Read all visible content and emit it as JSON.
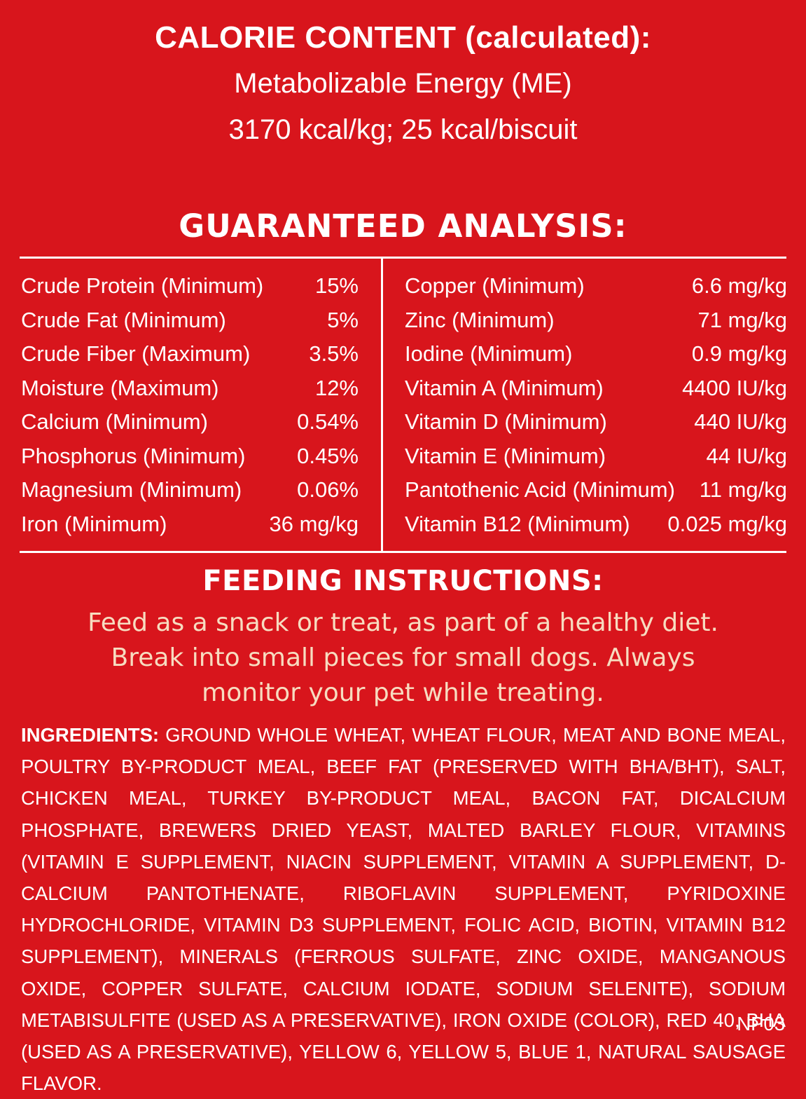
{
  "calorie": {
    "heading": "CALORIE CONTENT (calculated):",
    "line1": "Metabolizable Energy (ME)",
    "line2": "3170 kcal/kg; 25 kcal/biscuit"
  },
  "analysis": {
    "title": "GUARANTEED ANALYSIS:",
    "left": [
      {
        "name": "Crude Protein (Minimum)",
        "value": "15%"
      },
      {
        "name": "Crude Fat (Minimum)",
        "value": "5%"
      },
      {
        "name": "Crude Fiber (Maximum)",
        "value": "3.5%"
      },
      {
        "name": "Moisture (Maximum)",
        "value": "12%"
      },
      {
        "name": "Calcium (Minimum)",
        "value": "0.54%"
      },
      {
        "name": "Phosphorus (Minimum)",
        "value": "0.45%"
      },
      {
        "name": "Magnesium (Minimum)",
        "value": "0.06%"
      },
      {
        "name": "Iron (Minimum)",
        "value": "36 mg/kg"
      }
    ],
    "right": [
      {
        "name": "Copper (Minimum)",
        "value": "6.6 mg/kg"
      },
      {
        "name": "Zinc (Minimum)",
        "value": "71 mg/kg"
      },
      {
        "name": "Iodine (Minimum)",
        "value": "0.9 mg/kg"
      },
      {
        "name": "Vitamin A (Minimum)",
        "value": "4400 IU/kg"
      },
      {
        "name": "Vitamin D (Minimum)",
        "value": "440 IU/kg"
      },
      {
        "name": "Vitamin E (Minimum)",
        "value": "44 IU/kg"
      },
      {
        "name": "Pantothenic Acid (Minimum)",
        "value": "11 mg/kg"
      },
      {
        "name": "Vitamin B12 (Minimum)",
        "value": "0.025 mg/kg"
      }
    ]
  },
  "feeding": {
    "title": "FEEDING INSTRUCTIONS:",
    "line1": "Feed as a snack or treat, as part of a healthy diet.",
    "line2": "Break into small pieces for small dogs. Always",
    "line3": "monitor your pet while treating."
  },
  "ingredients": {
    "label": "INGREDIENTS:",
    "text": "GROUND WHOLE WHEAT, WHEAT FLOUR, MEAT AND BONE MEAL, POULTRY BY-PRODUCT MEAL, BEEF FAT (PRESERVED WITH BHA/BHT), SALT, CHICKEN MEAL, TURKEY BY-PRODUCT MEAL, BACON FAT, DICALCIUM PHOSPHATE, BREWERS DRIED YEAST, MALTED BARLEY FLOUR, VITAMINS (VITAMIN E SUPPLEMENT, NIACIN SUPPLEMENT, VITAMIN A SUPPLEMENT, D-CALCIUM PANTOTHENATE, RIBOFLAVIN SUPPLEMENT, PYRIDOXINE HYDROCHLORIDE, VITAMIN D3 SUPPLEMENT, FOLIC ACID, BIOTIN, VITAMIN B12 SUPPLEMENT), MINERALS (FERROUS SULFATE, ZINC OXIDE, MANGANOUS OXIDE, COPPER SULFATE, CALCIUM IODATE, SODIUM SELENITE), SODIUM METABISULFITE (USED AS A PRESERVATIVE), IRON OXIDE (COLOR), RED 40, BHA (USED AS A PRESERVATIVE), YELLOW 6, YELLOW 5, BLUE 1, NATURAL SAUSAGE FLAVOR.",
    "code": "NP03"
  },
  "colors": {
    "background": "#d8151c",
    "text": "#ffffff",
    "feeding_text": "#f7dcc0"
  }
}
